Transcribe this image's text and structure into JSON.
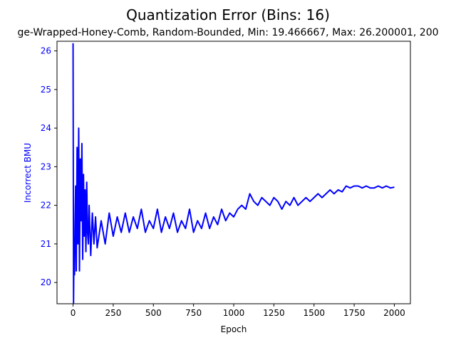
{
  "chart_data": {
    "type": "line",
    "title": "Quantization Error (Bins: 16)",
    "subtitle": "ge-Wrapped-Honey-Comb, Random-Bounded, Min: 19.466667, Max: 26.200001, 200",
    "xlabel": "Epoch",
    "ylabel": "Incorrect BMU",
    "xlim": [
      -100,
      2100
    ],
    "ylim": [
      19.45,
      26.25
    ],
    "x_ticks": [
      0,
      250,
      500,
      750,
      1000,
      1250,
      1500,
      1750,
      2000
    ],
    "x_tick_labels": [
      "0",
      "250",
      "500",
      "750",
      "1000",
      "1250",
      "1500",
      "1750",
      "2000"
    ],
    "y_ticks": [
      20,
      21,
      22,
      23,
      24,
      25,
      26
    ],
    "y_tick_labels": [
      "20",
      "21",
      "22",
      "23",
      "24",
      "25",
      "26"
    ],
    "grid": false,
    "colors": {
      "line": "#0000ff",
      "ylabel": "#0000ff",
      "yticks": "#0000ff",
      "axes": "#000000"
    },
    "series": [
      {
        "x": [
          0,
          3,
          6,
          9,
          12,
          16,
          20,
          25,
          30,
          35,
          40,
          45,
          50,
          55,
          60,
          65,
          70,
          75,
          80,
          85,
          90,
          95,
          100,
          110,
          120,
          130,
          140,
          150,
          175,
          200,
          225,
          250,
          275,
          300,
          325,
          350,
          375,
          400,
          425,
          450,
          475,
          500,
          525,
          550,
          575,
          600,
          625,
          650,
          675,
          700,
          725,
          750,
          775,
          800,
          825,
          850,
          875,
          900,
          925,
          950,
          975,
          1000,
          1025,
          1050,
          1075,
          1100,
          1125,
          1150,
          1175,
          1200,
          1225,
          1250,
          1275,
          1300,
          1325,
          1350,
          1375,
          1400,
          1425,
          1450,
          1475,
          1500,
          1525,
          1550,
          1575,
          1600,
          1625,
          1650,
          1675,
          1700,
          1725,
          1750,
          1775,
          1800,
          1825,
          1850,
          1875,
          1900,
          1925,
          1950,
          1975,
          2000
        ],
        "y": [
          26.2,
          19.47,
          21.0,
          20.2,
          21.5,
          22.5,
          20.3,
          23.5,
          21.0,
          24.0,
          20.3,
          23.2,
          21.6,
          23.6,
          20.6,
          22.8,
          21.2,
          22.4,
          20.8,
          22.6,
          21.3,
          21.0,
          22.0,
          20.7,
          21.8,
          21.0,
          21.7,
          20.9,
          21.6,
          21.0,
          21.8,
          21.2,
          21.7,
          21.3,
          21.8,
          21.3,
          21.7,
          21.4,
          21.9,
          21.3,
          21.6,
          21.4,
          21.9,
          21.3,
          21.7,
          21.4,
          21.8,
          21.3,
          21.6,
          21.4,
          21.9,
          21.3,
          21.6,
          21.4,
          21.8,
          21.4,
          21.7,
          21.5,
          21.9,
          21.6,
          21.8,
          21.7,
          21.9,
          22.0,
          21.9,
          22.3,
          22.1,
          22.0,
          22.2,
          22.1,
          22.0,
          22.2,
          22.1,
          21.9,
          22.1,
          22.0,
          22.2,
          22.0,
          22.1,
          22.2,
          22.1,
          22.2,
          22.3,
          22.2,
          22.3,
          22.4,
          22.3,
          22.4,
          22.35,
          22.5,
          22.45,
          22.5,
          22.5,
          22.45,
          22.5,
          22.45,
          22.45,
          22.5,
          22.45,
          22.5,
          22.45,
          22.47
        ]
      }
    ]
  }
}
